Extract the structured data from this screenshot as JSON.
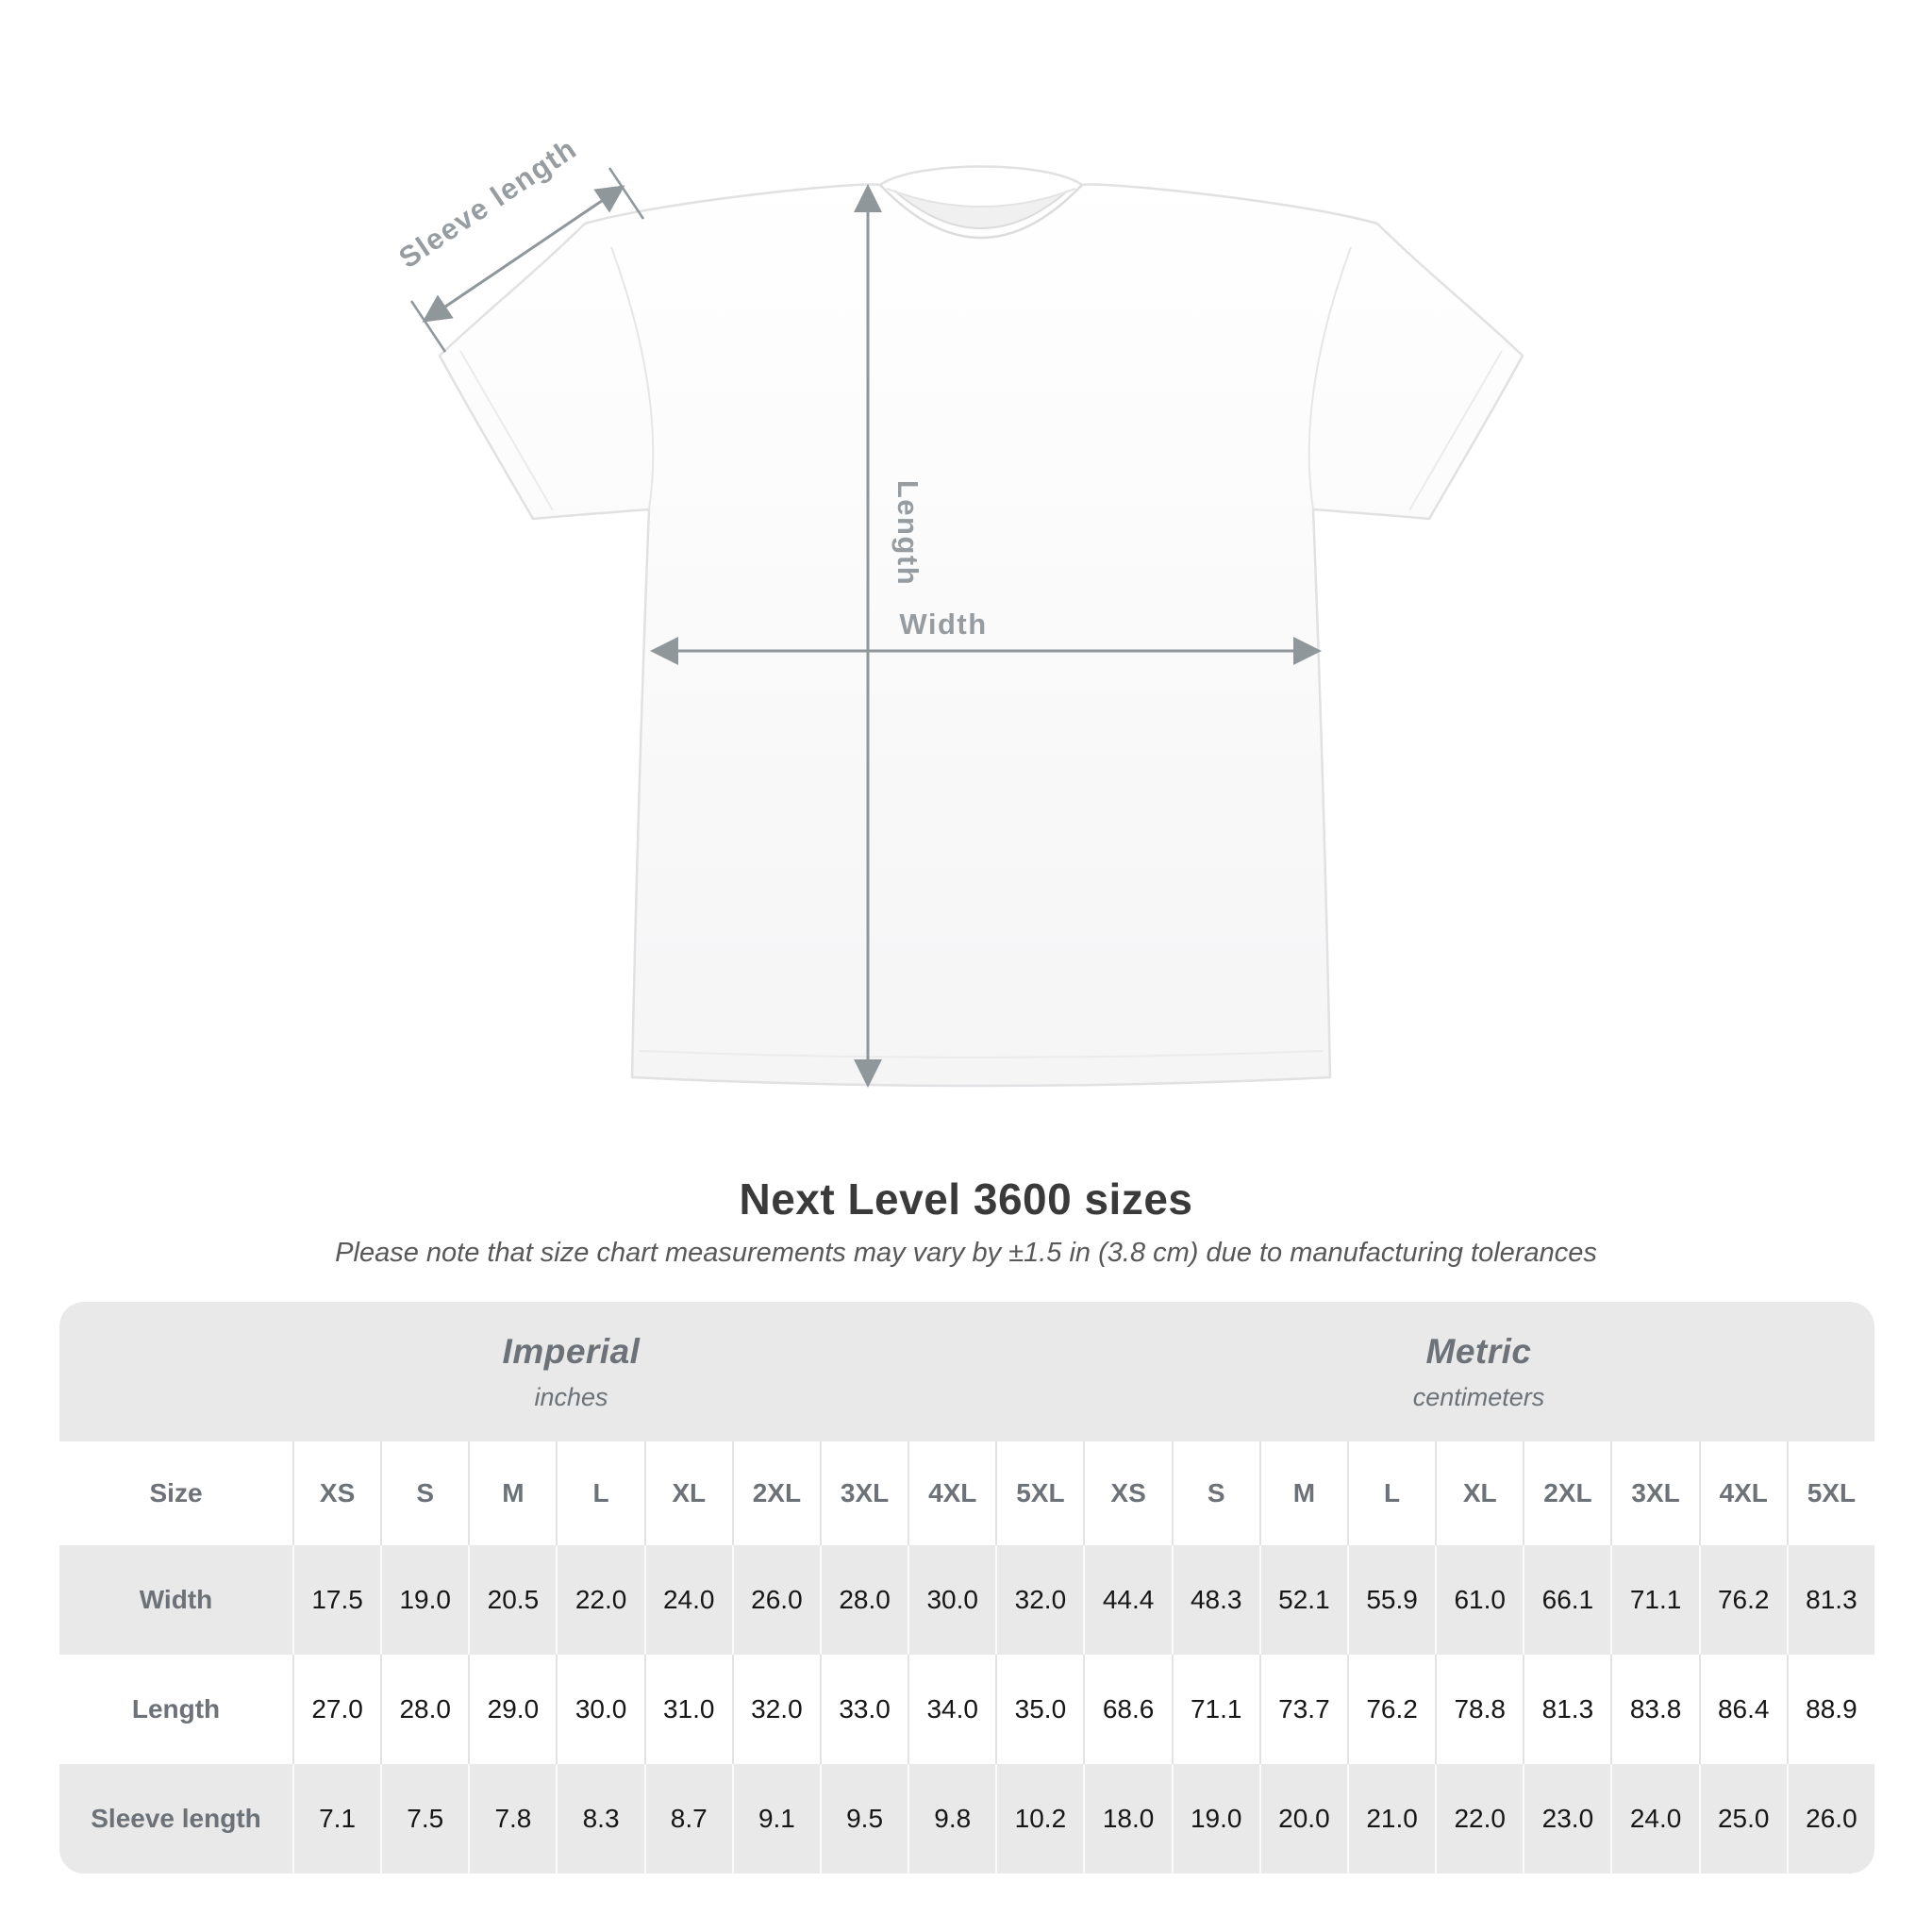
{
  "shirt_diagram": {
    "labels": {
      "sleeve_length": "Sleeve length",
      "length": "Length",
      "width": "Width"
    },
    "colors": {
      "dimension_line": "#8f979b",
      "dimension_text": "#969ca0",
      "shirt_outline": "#e1e1e3"
    }
  },
  "heading": {
    "title": "Next Level 3600 sizes",
    "subtitle": "Please note that size chart measurements may vary by ±1.5 in (3.8 cm) due to manufacturing tolerances"
  },
  "chart_data": {
    "type": "table",
    "title": "Next Level 3600 sizes",
    "note": "Please note that size chart measurements may vary by ±1.5 in (3.8 cm) due to manufacturing tolerances",
    "colors": {
      "row_shade": "#e9e9e9",
      "header_text": "#6c7277",
      "value_text": "#161616"
    },
    "unit_groups": [
      {
        "label": "Imperial",
        "sublabel": "inches"
      },
      {
        "label": "Metric",
        "sublabel": "centimeters"
      }
    ],
    "size_row_label": "Size",
    "sizes": [
      "XS",
      "S",
      "M",
      "L",
      "XL",
      "2XL",
      "3XL",
      "4XL",
      "5XL"
    ],
    "rows": [
      {
        "label": "Width",
        "imperial": [
          "17.5",
          "19.0",
          "20.5",
          "22.0",
          "24.0",
          "26.0",
          "28.0",
          "30.0",
          "32.0"
        ],
        "metric": [
          "44.4",
          "48.3",
          "52.1",
          "55.9",
          "61.0",
          "66.1",
          "71.1",
          "76.2",
          "81.3"
        ]
      },
      {
        "label": "Length",
        "imperial": [
          "27.0",
          "28.0",
          "29.0",
          "30.0",
          "31.0",
          "32.0",
          "33.0",
          "34.0",
          "35.0"
        ],
        "metric": [
          "68.6",
          "71.1",
          "73.7",
          "76.2",
          "78.8",
          "81.3",
          "83.8",
          "86.4",
          "88.9"
        ]
      },
      {
        "label": "Sleeve length",
        "imperial": [
          "7.1",
          "7.5",
          "7.8",
          "8.3",
          "8.7",
          "9.1",
          "9.5",
          "9.8",
          "10.2"
        ],
        "metric": [
          "18.0",
          "19.0",
          "20.0",
          "21.0",
          "22.0",
          "23.0",
          "24.0",
          "25.0",
          "26.0"
        ]
      }
    ]
  }
}
